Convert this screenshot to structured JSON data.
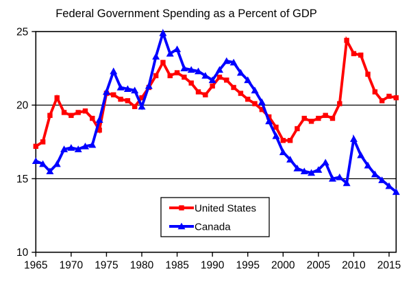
{
  "title": "Federal Government Spending as a Percent of GDP",
  "colors": {
    "background": "#FFFFFF",
    "axis": "#000000",
    "text": "#000000",
    "us_series": "#FF0000",
    "canada_series": "#0000FF"
  },
  "legend": {
    "entries": [
      "United States",
      "Canada"
    ]
  },
  "chart_data": {
    "type": "line",
    "title": "Federal Government Spending as a Percent of GDP",
    "xlabel": "",
    "ylabel": "",
    "x": [
      1965,
      1966,
      1967,
      1968,
      1969,
      1970,
      1971,
      1972,
      1973,
      1974,
      1975,
      1976,
      1977,
      1978,
      1979,
      1980,
      1981,
      1982,
      1983,
      1984,
      1985,
      1986,
      1987,
      1988,
      1989,
      1990,
      1991,
      1992,
      1993,
      1994,
      1995,
      1996,
      1997,
      1998,
      1999,
      2000,
      2001,
      2002,
      2003,
      2004,
      2005,
      2006,
      2007,
      2008,
      2009,
      2010,
      2011,
      2012,
      2013,
      2014,
      2015,
      2016
    ],
    "series": [
      {
        "name": "United States",
        "color": "#FF0000",
        "marker": "square",
        "values": [
          17.2,
          17.5,
          19.3,
          20.5,
          19.5,
          19.3,
          19.5,
          19.6,
          19.1,
          18.3,
          20.8,
          20.7,
          20.4,
          20.3,
          19.9,
          20.5,
          21.2,
          22.0,
          22.9,
          22.0,
          22.2,
          21.9,
          21.5,
          20.9,
          20.7,
          21.3,
          21.9,
          21.7,
          21.2,
          20.8,
          20.4,
          20.1,
          19.7,
          19.2,
          18.5,
          17.6,
          17.6,
          18.4,
          19.1,
          18.9,
          19.1,
          19.3,
          19.1,
          20.1,
          24.4,
          23.5,
          23.4,
          22.1,
          20.9,
          20.3,
          20.6,
          20.5
        ]
      },
      {
        "name": "Canada",
        "color": "#0000FF",
        "marker": "triangle",
        "values": [
          16.2,
          16.0,
          15.5,
          16.0,
          17.0,
          17.1,
          17.0,
          17.2,
          17.3,
          19.0,
          20.9,
          22.3,
          21.2,
          21.1,
          21.0,
          19.9,
          21.3,
          23.3,
          24.9,
          23.5,
          23.8,
          22.5,
          22.4,
          22.3,
          22.0,
          21.7,
          22.4,
          23.0,
          22.9,
          22.2,
          21.7,
          21.0,
          20.2,
          18.9,
          17.9,
          16.8,
          16.3,
          15.7,
          15.5,
          15.4,
          15.6,
          16.1,
          15.0,
          15.1,
          14.7,
          17.7,
          16.6,
          15.9,
          15.3,
          14.9,
          14.5,
          14.1
        ]
      }
    ],
    "xlim": [
      1965,
      2016
    ],
    "ylim": [
      10,
      25
    ],
    "xticks": [
      1965,
      1970,
      1975,
      1980,
      1985,
      1990,
      1995,
      2000,
      2005,
      2010,
      2015
    ],
    "yticks": [
      10,
      15,
      20,
      25
    ],
    "gridlines_y": [
      15,
      20
    ],
    "grid": "horizontal",
    "legend_position": "bottom-center-inside"
  }
}
